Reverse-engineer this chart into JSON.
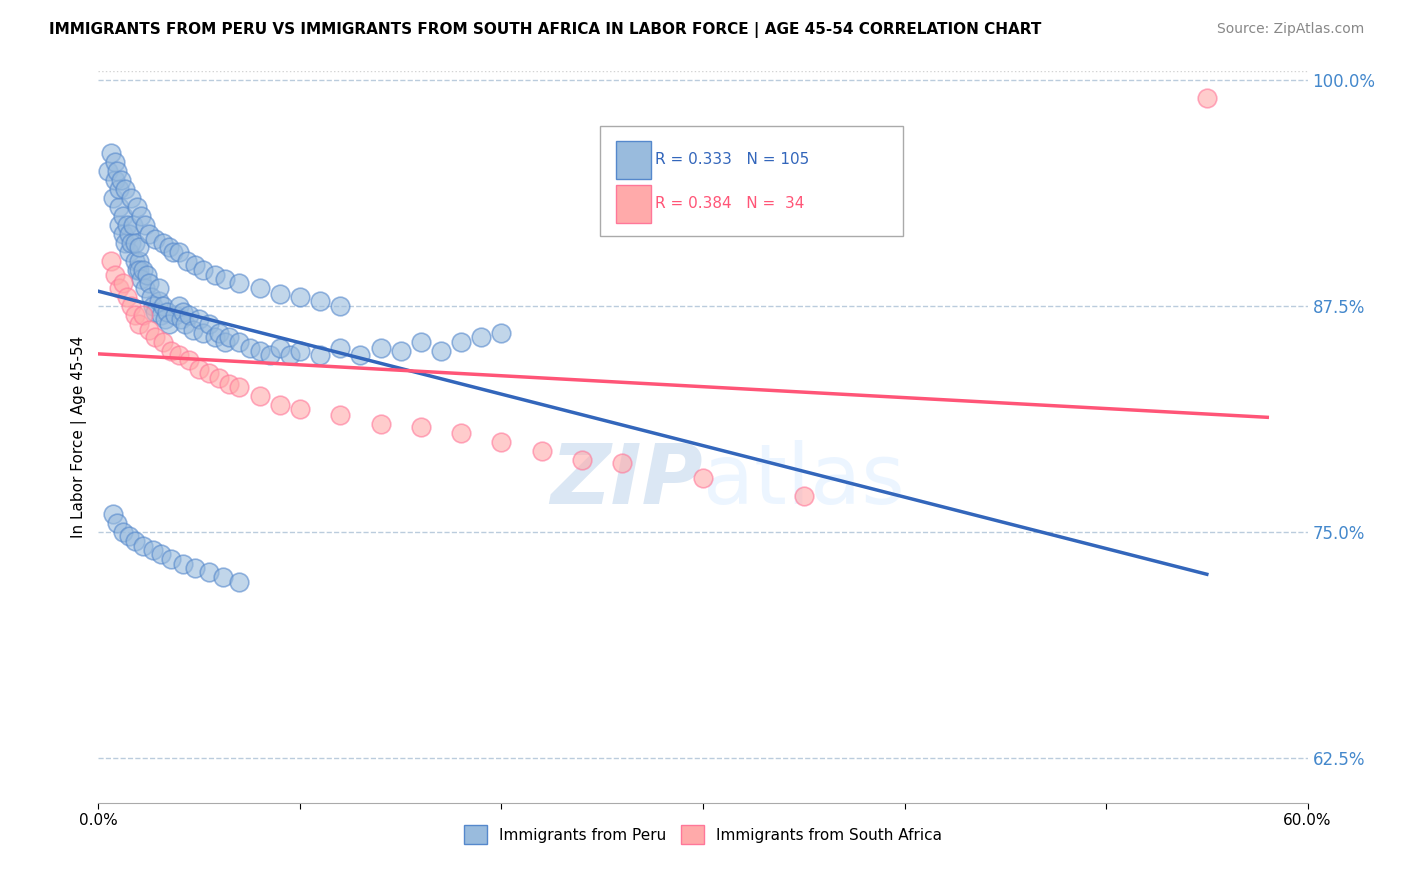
{
  "title": "IMMIGRANTS FROM PERU VS IMMIGRANTS FROM SOUTH AFRICA IN LABOR FORCE | AGE 45-54 CORRELATION CHART",
  "source": "Source: ZipAtlas.com",
  "ylabel": "In Labor Force | Age 45-54",
  "xlim": [
    0.0,
    0.6
  ],
  "ylim": [
    0.6,
    1.005
  ],
  "xticks": [
    0.0,
    0.1,
    0.2,
    0.3,
    0.4,
    0.5,
    0.6
  ],
  "xticklabels": [
    "0.0%",
    "",
    "",
    "",
    "",
    "",
    "60.0%"
  ],
  "yticks_right": [
    0.625,
    0.75,
    0.875,
    1.0
  ],
  "ytick_labels_right": [
    "62.5%",
    "75.0%",
    "87.5%",
    "100.0%"
  ],
  "yticks_grid": [
    0.625,
    0.75,
    0.875,
    1.0
  ],
  "peru_R": 0.333,
  "peru_N": 105,
  "sa_R": 0.384,
  "sa_N": 34,
  "peru_color": "#99BBDD",
  "sa_color": "#FFAAAA",
  "peru_edge_color": "#5588CC",
  "sa_edge_color": "#FF7799",
  "peru_line_color": "#3366BB",
  "sa_line_color": "#FF5577",
  "legend_peru": "Immigrants from Peru",
  "legend_sa": "Immigrants from South Africa",
  "watermark_zip": "ZIP",
  "watermark_atlas": "atlas",
  "peru_x": [
    0.005,
    0.007,
    0.008,
    0.01,
    0.01,
    0.01,
    0.012,
    0.012,
    0.013,
    0.014,
    0.015,
    0.015,
    0.016,
    0.017,
    0.018,
    0.018,
    0.019,
    0.02,
    0.02,
    0.02,
    0.021,
    0.022,
    0.023,
    0.024,
    0.025,
    0.026,
    0.027,
    0.028,
    0.03,
    0.03,
    0.031,
    0.032,
    0.033,
    0.034,
    0.035,
    0.038,
    0.04,
    0.041,
    0.042,
    0.043,
    0.045,
    0.047,
    0.05,
    0.052,
    0.055,
    0.058,
    0.06,
    0.063,
    0.065,
    0.07,
    0.075,
    0.08,
    0.085,
    0.09,
    0.095,
    0.1,
    0.11,
    0.12,
    0.13,
    0.14,
    0.15,
    0.16,
    0.17,
    0.18,
    0.19,
    0.2,
    0.006,
    0.008,
    0.009,
    0.011,
    0.013,
    0.016,
    0.019,
    0.021,
    0.023,
    0.025,
    0.028,
    0.032,
    0.035,
    0.037,
    0.04,
    0.044,
    0.048,
    0.052,
    0.058,
    0.063,
    0.07,
    0.08,
    0.09,
    0.1,
    0.11,
    0.12,
    0.007,
    0.009,
    0.012,
    0.015,
    0.018,
    0.022,
    0.027,
    0.031,
    0.036,
    0.042,
    0.048,
    0.055,
    0.062,
    0.07
  ],
  "peru_y": [
    0.95,
    0.935,
    0.945,
    0.93,
    0.92,
    0.94,
    0.925,
    0.915,
    0.91,
    0.92,
    0.905,
    0.915,
    0.91,
    0.92,
    0.9,
    0.91,
    0.895,
    0.9,
    0.908,
    0.895,
    0.89,
    0.895,
    0.885,
    0.892,
    0.888,
    0.88,
    0.875,
    0.872,
    0.878,
    0.885,
    0.87,
    0.875,
    0.868,
    0.872,
    0.865,
    0.87,
    0.875,
    0.868,
    0.872,
    0.865,
    0.87,
    0.862,
    0.868,
    0.86,
    0.865,
    0.858,
    0.86,
    0.855,
    0.858,
    0.855,
    0.852,
    0.85,
    0.848,
    0.852,
    0.848,
    0.85,
    0.848,
    0.852,
    0.848,
    0.852,
    0.85,
    0.855,
    0.85,
    0.855,
    0.858,
    0.86,
    0.96,
    0.955,
    0.95,
    0.945,
    0.94,
    0.935,
    0.93,
    0.925,
    0.92,
    0.915,
    0.912,
    0.91,
    0.908,
    0.905,
    0.905,
    0.9,
    0.898,
    0.895,
    0.892,
    0.89,
    0.888,
    0.885,
    0.882,
    0.88,
    0.878,
    0.875,
    0.76,
    0.755,
    0.75,
    0.748,
    0.745,
    0.742,
    0.74,
    0.738,
    0.735,
    0.732,
    0.73,
    0.728,
    0.725,
    0.722
  ],
  "sa_x": [
    0.006,
    0.008,
    0.01,
    0.012,
    0.014,
    0.016,
    0.018,
    0.02,
    0.022,
    0.025,
    0.028,
    0.032,
    0.036,
    0.04,
    0.045,
    0.05,
    0.055,
    0.06,
    0.065,
    0.07,
    0.08,
    0.09,
    0.1,
    0.12,
    0.14,
    0.16,
    0.18,
    0.2,
    0.22,
    0.24,
    0.26,
    0.3,
    0.35,
    0.55
  ],
  "sa_y": [
    0.9,
    0.892,
    0.885,
    0.888,
    0.88,
    0.875,
    0.87,
    0.865,
    0.87,
    0.862,
    0.858,
    0.855,
    0.85,
    0.848,
    0.845,
    0.84,
    0.838,
    0.835,
    0.832,
    0.83,
    0.825,
    0.82,
    0.818,
    0.815,
    0.81,
    0.808,
    0.805,
    0.8,
    0.795,
    0.79,
    0.788,
    0.78,
    0.77,
    0.99
  ]
}
